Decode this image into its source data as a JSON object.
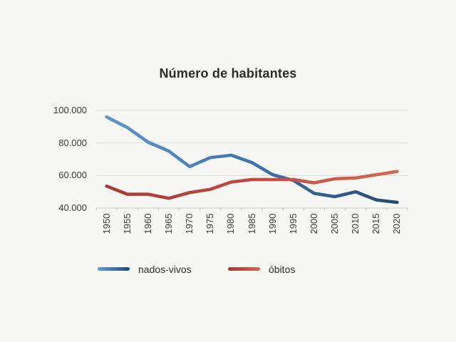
{
  "colors": {
    "background": "#f7f7f6",
    "title_text": "#2b2b2b",
    "axis_text": "#3c3c3c",
    "gridline": "#dcdcdb",
    "axis_line": "#c6c6c5",
    "legend_text": "#2e2e2e"
  },
  "chart_data": {
    "type": "line",
    "title": "Número de habitantes",
    "categories": [
      "1950",
      "1955",
      "1960",
      "1965",
      "1970",
      "1975",
      "1980",
      "1985",
      "1990",
      "1995",
      "2000",
      "2005",
      "2010",
      "2015",
      "2020"
    ],
    "series": [
      {
        "name": "nados-vivos",
        "gradient": [
          "#6097D1",
          "#3D74B0",
          "#24466F"
        ],
        "values": [
          96000,
          89500,
          80500,
          75000,
          65500,
          71000,
          72500,
          68000,
          60500,
          57000,
          49000,
          47000,
          50000,
          45000,
          43500
        ]
      },
      {
        "name": "óbitos",
        "gradient": [
          "#A93732",
          "#C24A41",
          "#D36A4F"
        ],
        "values": [
          53500,
          48500,
          48500,
          46000,
          49500,
          51500,
          56000,
          57500,
          57500,
          57500,
          55500,
          58000,
          58500,
          60500,
          62500
        ]
      }
    ],
    "ylim": [
      40000,
      100000
    ],
    "yticks": [
      {
        "value": 40000,
        "label": "40.000"
      },
      {
        "value": 60000,
        "label": "60.000"
      },
      {
        "value": 80000,
        "label": "80.000"
      },
      {
        "value": 100000,
        "label": "100.000"
      }
    ],
    "grid": "horizontal-only",
    "legend_position": "bottom",
    "x_labels_rotated_degrees": 90,
    "x_ticks_between_categories": true
  }
}
